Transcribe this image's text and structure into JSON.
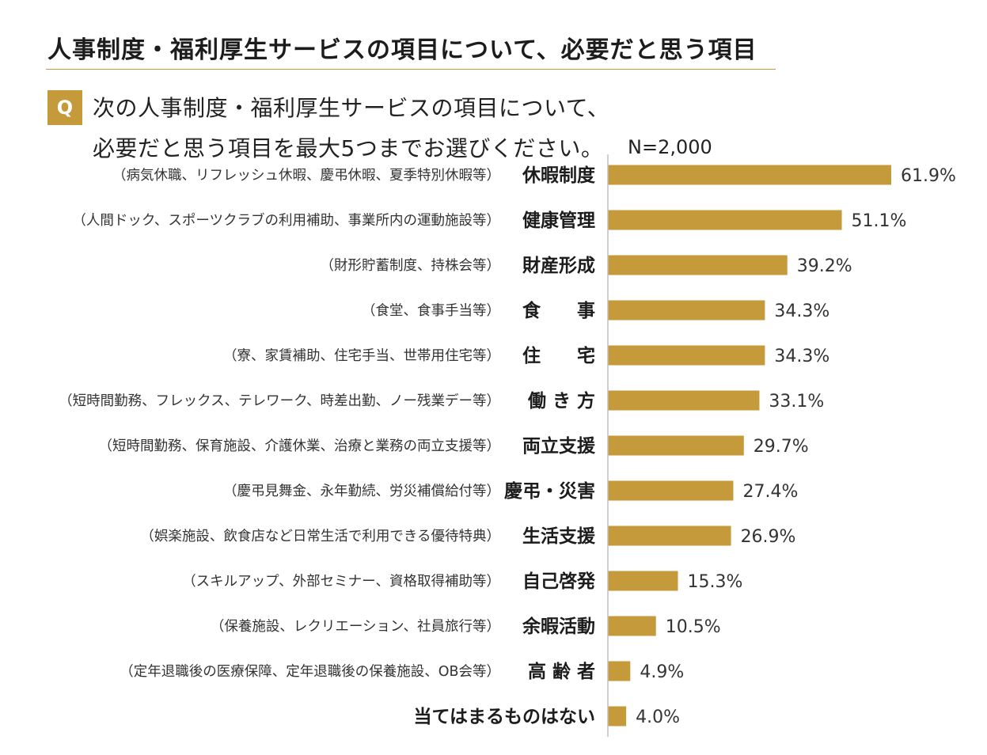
{
  "title": "人事制度・福利厚生サービスの項目について、必要だと思う項目",
  "question": {
    "badge": "Q",
    "line1": "次の人事制度・福利厚生サービスの項目について、",
    "line2": "必要だと思う項目を最大5つまでお選びください。"
  },
  "sample_size": "N=2,000",
  "colors": {
    "bar": "#c49a3a",
    "accent": "#c49a3a",
    "axis": "#bfbfbf"
  },
  "chart_data": {
    "type": "bar",
    "orientation": "horizontal",
    "unit": "%",
    "xlim": [
      0,
      61.9
    ],
    "categories": [
      "休暇制度",
      "健康管理",
      "財産形成",
      "食　　事",
      "住　　宅",
      "働 き 方",
      "両立支援",
      "慶弔・災害",
      "生活支援",
      "自己啓発",
      "余暇活動",
      "高 齢 者",
      "当てはまるものはない"
    ],
    "descriptions": [
      "（病気休職、リフレッシュ休暇、慶弔休暇、夏季特別休暇等）",
      "（人間ドック、スポーツクラブの利用補助、事業所内の運動施設等）",
      "（財形貯蓄制度、持株会等）",
      "（食堂、食事手当等）",
      "（寮、家賃補助、住宅手当、世帯用住宅等）",
      "（短時間勤務、フレックス、テレワーク、時差出勤、ノー残業デー等）",
      "（短時間勤務、保育施設、介護休業、治療と業務の両立支援等）",
      "（慶弔見舞金、永年勤続、労災補償給付等）",
      "（娯楽施設、飲食店など日常生活で利用できる優待特典）",
      "（スキルアップ、外部セミナー、資格取得補助等）",
      "（保養施設、レクリエーション、社員旅行等）",
      "（定年退職後の医療保障、定年退職後の保養施設、OB会等）",
      ""
    ],
    "values": [
      61.9,
      51.1,
      39.2,
      34.3,
      34.3,
      33.1,
      29.7,
      27.4,
      26.9,
      15.3,
      10.5,
      4.9,
      4.0
    ],
    "value_labels": [
      "61.9%",
      "51.1%",
      "39.2%",
      "34.3%",
      "34.3%",
      "33.1%",
      "29.7%",
      "27.4%",
      "26.9%",
      "15.3%",
      "10.5%",
      "4.9%",
      "4.0%"
    ]
  }
}
